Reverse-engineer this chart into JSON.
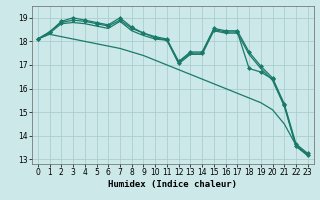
{
  "xlabel": "Humidex (Indice chaleur)",
  "background_color": "#cce8e8",
  "grid_color": "#aacece",
  "line_color": "#1a7a6a",
  "xlim": [
    -0.5,
    23.5
  ],
  "ylim": [
    12.8,
    19.5
  ],
  "yticks": [
    13,
    14,
    15,
    16,
    17,
    18,
    19
  ],
  "xticks": [
    0,
    1,
    2,
    3,
    4,
    5,
    6,
    7,
    8,
    9,
    10,
    11,
    12,
    13,
    14,
    15,
    16,
    17,
    18,
    19,
    20,
    21,
    22,
    23
  ],
  "series": [
    {
      "x": [
        0,
        1,
        2,
        3,
        4,
        5,
        6,
        7,
        8,
        9,
        10,
        11,
        12,
        13,
        14,
        15,
        16,
        17,
        18,
        19,
        20,
        21,
        22,
        23
      ],
      "y": [
        18.1,
        18.4,
        18.8,
        18.9,
        18.85,
        18.75,
        18.65,
        18.9,
        18.55,
        18.35,
        18.15,
        18.05,
        17.1,
        17.5,
        17.5,
        18.5,
        18.4,
        18.4,
        16.85,
        16.7,
        16.4,
        15.3,
        13.55,
        13.2
      ],
      "marker": true
    },
    {
      "x": [
        0,
        1,
        2,
        3,
        4,
        5,
        6,
        7,
        8,
        9,
        10,
        11,
        12,
        13,
        14,
        15,
        16,
        17,
        18,
        19,
        20,
        21,
        22,
        23
      ],
      "y": [
        18.1,
        18.4,
        18.85,
        19.0,
        18.9,
        18.8,
        18.7,
        19.0,
        18.6,
        18.35,
        18.2,
        18.1,
        17.15,
        17.55,
        17.55,
        18.55,
        18.45,
        18.45,
        17.55,
        16.95,
        16.45,
        15.35,
        13.65,
        13.25
      ],
      "marker": true
    },
    {
      "x": [
        0,
        1,
        2,
        3,
        4,
        5,
        6,
        7,
        8,
        9,
        10,
        11,
        12,
        13,
        14,
        15,
        16,
        17,
        18,
        19,
        20,
        21,
        22,
        23
      ],
      "y": [
        18.1,
        18.35,
        18.75,
        18.8,
        18.75,
        18.65,
        18.55,
        18.85,
        18.45,
        18.25,
        18.1,
        18.05,
        17.05,
        17.45,
        17.45,
        18.45,
        18.35,
        18.35,
        17.45,
        16.85,
        16.35,
        15.25,
        13.55,
        13.15
      ],
      "marker": false
    },
    {
      "x": [
        0,
        1,
        2,
        3,
        4,
        5,
        6,
        7,
        8,
        9,
        10,
        11,
        12,
        13,
        14,
        15,
        16,
        17,
        18,
        19,
        20,
        21,
        22,
        23
      ],
      "y": [
        18.1,
        18.3,
        18.2,
        18.1,
        18.0,
        17.9,
        17.8,
        17.7,
        17.55,
        17.4,
        17.2,
        17.0,
        16.8,
        16.6,
        16.4,
        16.2,
        16.0,
        15.8,
        15.6,
        15.4,
        15.1,
        14.5,
        13.6,
        13.2
      ],
      "marker": false
    }
  ]
}
